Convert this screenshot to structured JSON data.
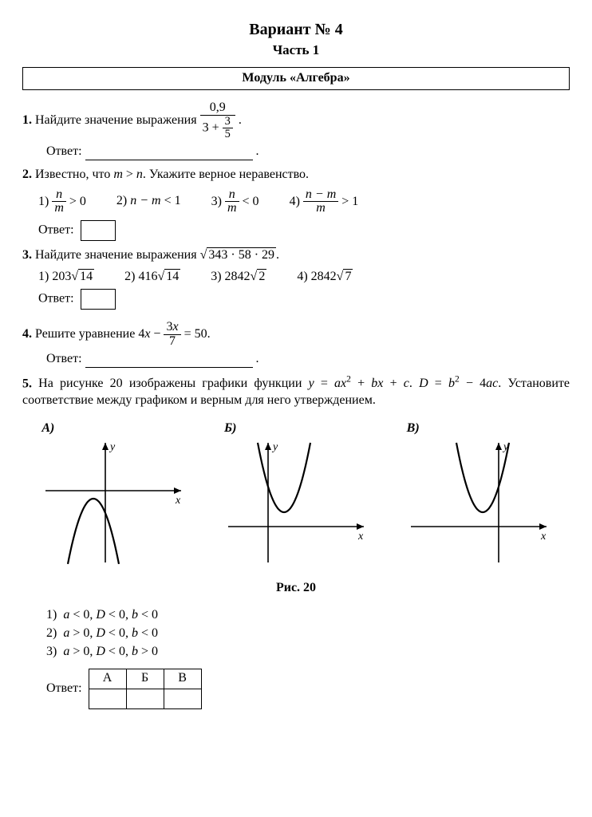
{
  "header": {
    "title": "Вариант № 4",
    "part": "Часть 1",
    "module": "Модуль «Алгебра»"
  },
  "q1": {
    "num": "1.",
    "text_before": "Найдите значение выражения ",
    "frac_num": "0,9",
    "frac_den_left": "3 + ",
    "frac_den_inner_num": "3",
    "frac_den_inner_den": "5",
    "answer_label": "Ответ:"
  },
  "q2": {
    "num": "2.",
    "text": "Известно, что m > n. Укажите верное неравенство.",
    "opts": {
      "o1_lbl": "1)",
      "o1_num": "n",
      "o1_den": "m",
      "o1_cmp": "> 0",
      "o2_lbl": "2)",
      "o2_expr": "n − m < 1",
      "o3_lbl": "3)",
      "o3_num": "n",
      "o3_den": "m",
      "o3_cmp": "< 0",
      "o4_lbl": "4)",
      "o4_num": "n − m",
      "o4_den": "m",
      "o4_cmp": "> 1"
    },
    "answer_label": "Ответ:"
  },
  "q3": {
    "num": "3.",
    "text_before": "Найдите значение выражения ",
    "rad_arg": "343 · 58 · 29",
    "opts": {
      "o1_lbl": "1)",
      "o1_coef": "203",
      "o1_rad": "14",
      "o2_lbl": "2)",
      "o2_coef": "416",
      "o2_rad": "14",
      "o3_lbl": "3)",
      "o3_coef": "2842",
      "o3_rad": "2",
      "o4_lbl": "4)",
      "o4_coef": "2842",
      "o4_rad": "7"
    },
    "answer_label": "Ответ:"
  },
  "q4": {
    "num": "4.",
    "text_before": "Решите уравнение 4x − ",
    "frac_num": "3x",
    "frac_den": "7",
    "text_after": " = 50.",
    "answer_label": "Ответ:"
  },
  "q5": {
    "num": "5.",
    "text": "На рисунке 20 изображены графики функции y = ax² + bx + c. D = b² − 4ac. Установите соответствие между графиком и верным для него утверждением.",
    "labels": {
      "A": "А)",
      "B": "Б)",
      "V": "В)"
    },
    "fig_caption": "Рис. 20",
    "stmts": {
      "s1": "1)  a < 0, D < 0, b < 0",
      "s2": "2)  a > 0, D < 0, b < 0",
      "s3": "3)  a > 0, D < 0, b > 0"
    },
    "answer_label": "Ответ:",
    "tbl": {
      "A": "А",
      "B": "Б",
      "V": "В"
    },
    "charts": {
      "A": {
        "type": "parabola",
        "a": -1,
        "vx": -15,
        "vy": -10,
        "scale": 0.08
      },
      "B": {
        "type": "parabola",
        "a": 1,
        "vx": 20,
        "vy": 18,
        "scale": 0.08
      },
      "V": {
        "type": "parabola",
        "a": 1,
        "vx": -20,
        "vy": 18,
        "scale": 0.08
      }
    },
    "axis_color": "#000",
    "curve_color": "#000",
    "curve_width": 2.2
  }
}
